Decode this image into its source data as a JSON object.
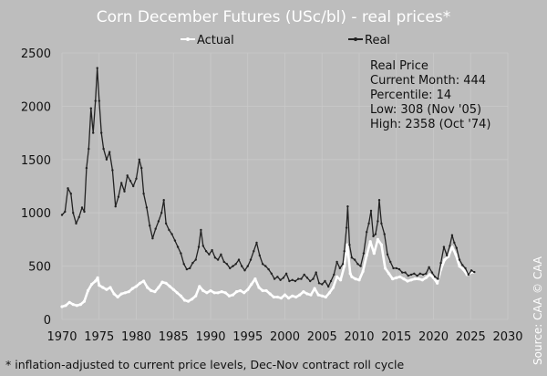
{
  "chart_data": {
    "type": "line",
    "title": "Corn December Futures (USc/bl) - real prices*",
    "xlabel": "",
    "ylabel": "",
    "xlim": [
      1970,
      2030
    ],
    "ylim": [
      0,
      2500
    ],
    "x_ticks": [
      "1970",
      "1975",
      "1980",
      "1985",
      "1990",
      "1995",
      "2000",
      "2005",
      "2010",
      "2015",
      "2020",
      "2025",
      "2030"
    ],
    "y_ticks": [
      "0",
      "500",
      "1000",
      "1500",
      "2000",
      "2500"
    ],
    "grid": true,
    "legend_position": "top-center",
    "footnote": "* inflation-adjusted to current price levels, Dec-Nov contract roll cycle",
    "source": "Source: CAA",
    "copyright": "© CAA",
    "info_box": {
      "title": "Real Price",
      "lines": [
        "Current Month: 444",
        "Percentile: 14",
        "Low: 308 (Nov '05)",
        "High: 2358 (Oct '74)"
      ]
    },
    "series": [
      {
        "name": "Actual",
        "color": "#ffffff",
        "points": [
          [
            1970.0,
            120
          ],
          [
            1970.5,
            130
          ],
          [
            1971.0,
            160
          ],
          [
            1971.5,
            140
          ],
          [
            1972.0,
            130
          ],
          [
            1972.5,
            140
          ],
          [
            1973.0,
            170
          ],
          [
            1973.5,
            270
          ],
          [
            1974.0,
            330
          ],
          [
            1974.5,
            360
          ],
          [
            1974.8,
            390
          ],
          [
            1975.0,
            320
          ],
          [
            1975.5,
            300
          ],
          [
            1976.0,
            280
          ],
          [
            1976.5,
            300
          ],
          [
            1977.0,
            240
          ],
          [
            1977.5,
            210
          ],
          [
            1978.0,
            240
          ],
          [
            1978.5,
            250
          ],
          [
            1979.0,
            260
          ],
          [
            1979.5,
            290
          ],
          [
            1980.0,
            310
          ],
          [
            1980.5,
            340
          ],
          [
            1981.0,
            360
          ],
          [
            1981.5,
            300
          ],
          [
            1982.0,
            270
          ],
          [
            1982.5,
            260
          ],
          [
            1983.0,
            300
          ],
          [
            1983.5,
            350
          ],
          [
            1984.0,
            340
          ],
          [
            1984.5,
            310
          ],
          [
            1985.0,
            280
          ],
          [
            1985.5,
            250
          ],
          [
            1986.0,
            220
          ],
          [
            1986.5,
            180
          ],
          [
            1987.0,
            170
          ],
          [
            1987.5,
            190
          ],
          [
            1988.0,
            220
          ],
          [
            1988.5,
            310
          ],
          [
            1989.0,
            270
          ],
          [
            1989.5,
            250
          ],
          [
            1990.0,
            270
          ],
          [
            1990.5,
            250
          ],
          [
            1991.0,
            250
          ],
          [
            1991.5,
            260
          ],
          [
            1992.0,
            250
          ],
          [
            1992.5,
            220
          ],
          [
            1993.0,
            230
          ],
          [
            1993.5,
            260
          ],
          [
            1994.0,
            270
          ],
          [
            1994.5,
            250
          ],
          [
            1995.0,
            280
          ],
          [
            1995.5,
            330
          ],
          [
            1996.0,
            380
          ],
          [
            1996.5,
            300
          ],
          [
            1997.0,
            270
          ],
          [
            1997.5,
            270
          ],
          [
            1998.0,
            240
          ],
          [
            1998.5,
            210
          ],
          [
            1999.0,
            210
          ],
          [
            1999.5,
            200
          ],
          [
            2000.0,
            230
          ],
          [
            2000.5,
            200
          ],
          [
            2001.0,
            220
          ],
          [
            2001.5,
            210
          ],
          [
            2002.0,
            230
          ],
          [
            2002.5,
            260
          ],
          [
            2003.0,
            240
          ],
          [
            2003.5,
            230
          ],
          [
            2004.0,
            290
          ],
          [
            2004.5,
            230
          ],
          [
            2005.0,
            220
          ],
          [
            2005.5,
            210
          ],
          [
            2006.0,
            250
          ],
          [
            2006.5,
            300
          ],
          [
            2007.0,
            400
          ],
          [
            2007.5,
            370
          ],
          [
            2008.0,
            500
          ],
          [
            2008.4,
            700
          ],
          [
            2008.8,
            430
          ],
          [
            2009.0,
            400
          ],
          [
            2009.5,
            380
          ],
          [
            2010.0,
            370
          ],
          [
            2010.5,
            450
          ],
          [
            2011.0,
            600
          ],
          [
            2011.5,
            730
          ],
          [
            2012.0,
            620
          ],
          [
            2012.5,
            750
          ],
          [
            2013.0,
            700
          ],
          [
            2013.5,
            480
          ],
          [
            2014.0,
            430
          ],
          [
            2014.5,
            380
          ],
          [
            2015.0,
            390
          ],
          [
            2015.5,
            400
          ],
          [
            2016.0,
            380
          ],
          [
            2016.5,
            360
          ],
          [
            2017.0,
            370
          ],
          [
            2017.5,
            380
          ],
          [
            2018.0,
            380
          ],
          [
            2018.5,
            370
          ],
          [
            2019.0,
            390
          ],
          [
            2019.5,
            420
          ],
          [
            2020.0,
            390
          ],
          [
            2020.5,
            340
          ],
          [
            2021.0,
            470
          ],
          [
            2021.5,
            560
          ],
          [
            2022.0,
            590
          ],
          [
            2022.5,
            680
          ],
          [
            2023.0,
            610
          ],
          [
            2023.5,
            500
          ],
          [
            2024.0,
            470
          ],
          [
            2024.5,
            420
          ],
          [
            2025.0,
            440
          ],
          [
            2025.4,
            444
          ]
        ]
      },
      {
        "name": "Real",
        "color": "#222222",
        "points": [
          [
            1970.0,
            980
          ],
          [
            1970.4,
            1010
          ],
          [
            1970.8,
            1230
          ],
          [
            1971.2,
            1180
          ],
          [
            1971.5,
            1000
          ],
          [
            1971.9,
            900
          ],
          [
            1972.3,
            960
          ],
          [
            1972.7,
            1050
          ],
          [
            1973.0,
            1010
          ],
          [
            1973.3,
            1420
          ],
          [
            1973.6,
            1600
          ],
          [
            1973.9,
            1980
          ],
          [
            1974.2,
            1750
          ],
          [
            1974.5,
            2050
          ],
          [
            1974.75,
            2358
          ],
          [
            1975.0,
            2050
          ],
          [
            1975.3,
            1750
          ],
          [
            1975.6,
            1600
          ],
          [
            1976.0,
            1500
          ],
          [
            1976.4,
            1570
          ],
          [
            1976.8,
            1400
          ],
          [
            1977.2,
            1060
          ],
          [
            1977.6,
            1150
          ],
          [
            1978.0,
            1280
          ],
          [
            1978.4,
            1200
          ],
          [
            1978.8,
            1350
          ],
          [
            1979.2,
            1300
          ],
          [
            1979.6,
            1250
          ],
          [
            1980.0,
            1320
          ],
          [
            1980.4,
            1500
          ],
          [
            1980.7,
            1420
          ],
          [
            1981.0,
            1180
          ],
          [
            1981.4,
            1050
          ],
          [
            1981.8,
            880
          ],
          [
            1982.2,
            760
          ],
          [
            1982.6,
            850
          ],
          [
            1983.0,
            920
          ],
          [
            1983.4,
            1000
          ],
          [
            1983.7,
            1120
          ],
          [
            1984.0,
            900
          ],
          [
            1984.4,
            840
          ],
          [
            1984.8,
            800
          ],
          [
            1985.2,
            740
          ],
          [
            1985.6,
            680
          ],
          [
            1986.0,
            620
          ],
          [
            1986.4,
            520
          ],
          [
            1986.8,
            470
          ],
          [
            1987.2,
            480
          ],
          [
            1987.6,
            530
          ],
          [
            1988.0,
            560
          ],
          [
            1988.4,
            680
          ],
          [
            1988.7,
            840
          ],
          [
            1989.0,
            690
          ],
          [
            1989.4,
            640
          ],
          [
            1989.8,
            610
          ],
          [
            1990.2,
            650
          ],
          [
            1990.6,
            580
          ],
          [
            1991.0,
            560
          ],
          [
            1991.4,
            610
          ],
          [
            1991.8,
            540
          ],
          [
            1992.2,
            520
          ],
          [
            1992.6,
            480
          ],
          [
            1993.0,
            500
          ],
          [
            1993.4,
            520
          ],
          [
            1993.8,
            560
          ],
          [
            1994.2,
            500
          ],
          [
            1994.6,
            460
          ],
          [
            1995.0,
            500
          ],
          [
            1995.4,
            560
          ],
          [
            1995.8,
            640
          ],
          [
            1996.2,
            720
          ],
          [
            1996.6,
            600
          ],
          [
            1997.0,
            520
          ],
          [
            1997.4,
            500
          ],
          [
            1997.8,
            470
          ],
          [
            1998.2,
            430
          ],
          [
            1998.6,
            380
          ],
          [
            1999.0,
            400
          ],
          [
            1999.4,
            370
          ],
          [
            1999.8,
            390
          ],
          [
            2000.2,
            430
          ],
          [
            2000.6,
            360
          ],
          [
            2001.0,
            370
          ],
          [
            2001.4,
            360
          ],
          [
            2001.8,
            380
          ],
          [
            2002.2,
            380
          ],
          [
            2002.6,
            420
          ],
          [
            2003.0,
            390
          ],
          [
            2003.4,
            360
          ],
          [
            2003.8,
            380
          ],
          [
            2004.2,
            440
          ],
          [
            2004.6,
            340
          ],
          [
            2005.0,
            330
          ],
          [
            2005.4,
            360
          ],
          [
            2005.85,
            308
          ],
          [
            2006.2,
            360
          ],
          [
            2006.6,
            420
          ],
          [
            2007.0,
            540
          ],
          [
            2007.4,
            480
          ],
          [
            2007.8,
            520
          ],
          [
            2008.0,
            640
          ],
          [
            2008.3,
            860
          ],
          [
            2008.45,
            1060
          ],
          [
            2008.7,
            700
          ],
          [
            2009.0,
            580
          ],
          [
            2009.4,
            560
          ],
          [
            2009.8,
            520
          ],
          [
            2010.2,
            500
          ],
          [
            2010.6,
            620
          ],
          [
            2011.0,
            820
          ],
          [
            2011.3,
            900
          ],
          [
            2011.6,
            1020
          ],
          [
            2011.9,
            780
          ],
          [
            2012.2,
            800
          ],
          [
            2012.5,
            920
          ],
          [
            2012.7,
            1120
          ],
          [
            2013.0,
            900
          ],
          [
            2013.4,
            800
          ],
          [
            2013.8,
            610
          ],
          [
            2014.2,
            540
          ],
          [
            2014.6,
            480
          ],
          [
            2015.0,
            480
          ],
          [
            2015.4,
            470
          ],
          [
            2015.8,
            440
          ],
          [
            2016.2,
            440
          ],
          [
            2016.6,
            410
          ],
          [
            2017.0,
            420
          ],
          [
            2017.4,
            430
          ],
          [
            2017.8,
            410
          ],
          [
            2018.2,
            430
          ],
          [
            2018.6,
            420
          ],
          [
            2019.0,
            430
          ],
          [
            2019.4,
            490
          ],
          [
            2019.8,
            440
          ],
          [
            2020.2,
            400
          ],
          [
            2020.6,
            380
          ],
          [
            2021.0,
            530
          ],
          [
            2021.4,
            680
          ],
          [
            2021.8,
            600
          ],
          [
            2022.2,
            690
          ],
          [
            2022.5,
            790
          ],
          [
            2022.8,
            720
          ],
          [
            2023.1,
            670
          ],
          [
            2023.5,
            560
          ],
          [
            2023.9,
            510
          ],
          [
            2024.3,
            480
          ],
          [
            2024.7,
            420
          ],
          [
            2025.1,
            460
          ],
          [
            2025.5,
            444
          ]
        ]
      }
    ]
  }
}
